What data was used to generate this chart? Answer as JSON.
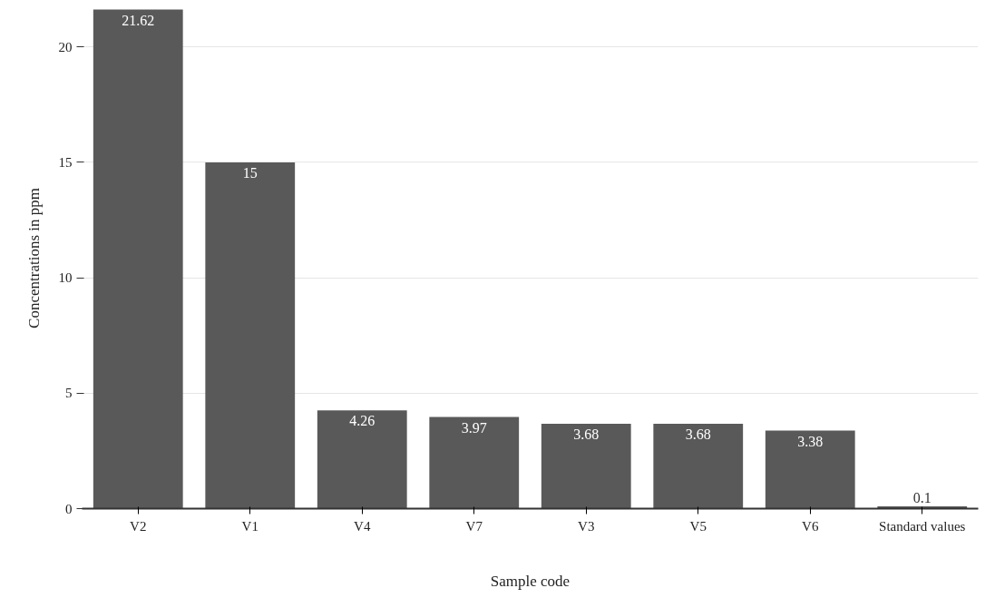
{
  "chart_data": {
    "type": "bar",
    "xlabel": "Sample code",
    "ylabel": "Concentrations in ppm",
    "categories": [
      "V2",
      "V1",
      "V4",
      "V7",
      "V3",
      "V5",
      "V6",
      "Standard values"
    ],
    "values": [
      21.62,
      15,
      4.26,
      3.97,
      3.68,
      3.68,
      3.38,
      0.1
    ],
    "value_labels": [
      "21.62",
      "15",
      "4.26",
      "3.97",
      "3.68",
      "3.68",
      "3.38",
      "0.1"
    ],
    "color": "#595959",
    "ylim": [
      0,
      21.7
    ],
    "yticks": [
      0,
      5,
      10,
      15,
      20
    ],
    "grid": "y"
  }
}
